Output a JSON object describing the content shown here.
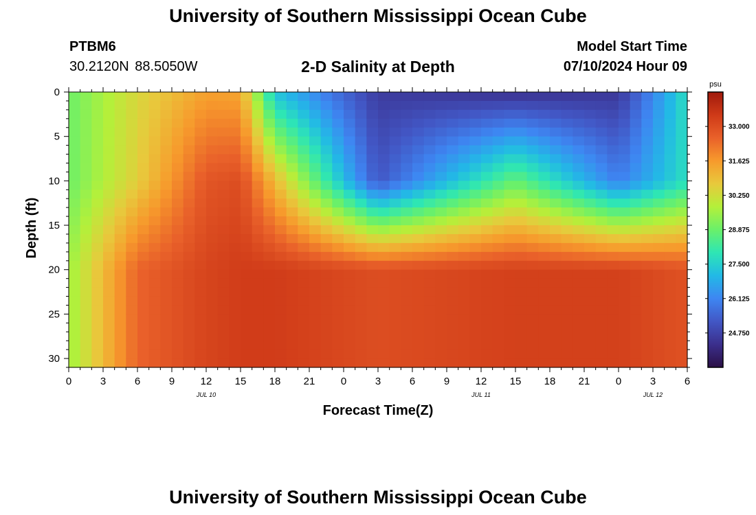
{
  "header": {
    "title": "University of Southern Mississippi Ocean Cube",
    "station_id": "PTBM6",
    "station_coords": "30.2120N  88.5050W",
    "plot_title": "2-D Salinity at Depth",
    "model_start_label": "Model Start Time",
    "model_start_time": "07/10/2024 Hour 09"
  },
  "footer": {
    "title": "University of Southern Mississippi Ocean Cube"
  },
  "chart_data": {
    "type": "heatmap",
    "title": "2-D Salinity at Depth",
    "xlabel": "Forecast Time(Z)",
    "ylabel": "Depth (ft)",
    "x_ticks": [
      "0",
      "3",
      "6",
      "9",
      "12",
      "15",
      "18",
      "21",
      "0",
      "3",
      "6",
      "9",
      "12",
      "15",
      "18",
      "21",
      "0",
      "3",
      "6"
    ],
    "x_tick_hours": [
      0,
      3,
      6,
      9,
      12,
      15,
      18,
      21,
      24,
      27,
      30,
      33,
      36,
      39,
      42,
      45,
      48,
      51,
      54
    ],
    "x_range_hours": [
      0,
      54
    ],
    "date_labels": [
      {
        "label": "JUL 10",
        "hour": 12
      },
      {
        "label": "JUL 11",
        "hour": 36
      },
      {
        "label": "JUL 12",
        "hour": 51
      }
    ],
    "y_ticks": [
      "0",
      "5",
      "10",
      "15",
      "20",
      "25",
      "30"
    ],
    "y_tick_values": [
      0,
      5,
      10,
      15,
      20,
      25,
      30
    ],
    "y_range": [
      0,
      31
    ],
    "y_inverted": true,
    "colorbar": {
      "unit": "psu",
      "range": [
        23.375,
        34.375
      ],
      "ticks": [
        "33.000",
        "31.625",
        "30.250",
        "28.875",
        "27.500",
        "26.125",
        "24.750"
      ],
      "tick_values": [
        33.0,
        31.625,
        30.25,
        28.875,
        27.5,
        26.125,
        24.75
      ],
      "colors": [
        "#2a0f45",
        "#3b2f8c",
        "#4257c5",
        "#3e86f2",
        "#22b9e6",
        "#2ee6b4",
        "#6af06a",
        "#b4f03a",
        "#e8c93c",
        "#f79a2c",
        "#e9612a",
        "#cf3a18",
        "#a01a0c"
      ]
    },
    "salinity_summary": [
      {
        "hour": 0,
        "surface": 28.9,
        "mid": 28.9,
        "bottom": 29.5
      },
      {
        "hour": 6,
        "surface": 30.4,
        "mid": 30.6,
        "bottom": 32.5
      },
      {
        "hour": 12,
        "surface": 31.5,
        "mid": 32.8,
        "bottom": 33.2
      },
      {
        "hour": 15,
        "surface": 31.4,
        "mid": 33.0,
        "bottom": 33.4
      },
      {
        "hour": 18,
        "surface": 27.2,
        "mid": 31.0,
        "bottom": 33.4
      },
      {
        "hour": 27,
        "surface": 24.6,
        "mid": 25.2,
        "bottom": 33.0
      },
      {
        "hour": 39,
        "surface": 24.3,
        "mid": 28.8,
        "bottom": 33.3
      },
      {
        "hour": 48,
        "surface": 24.5,
        "mid": 26.0,
        "bottom": 33.3
      },
      {
        "hour": 54,
        "surface": 27.8,
        "mid": 27.8,
        "bottom": 32.9
      }
    ]
  }
}
